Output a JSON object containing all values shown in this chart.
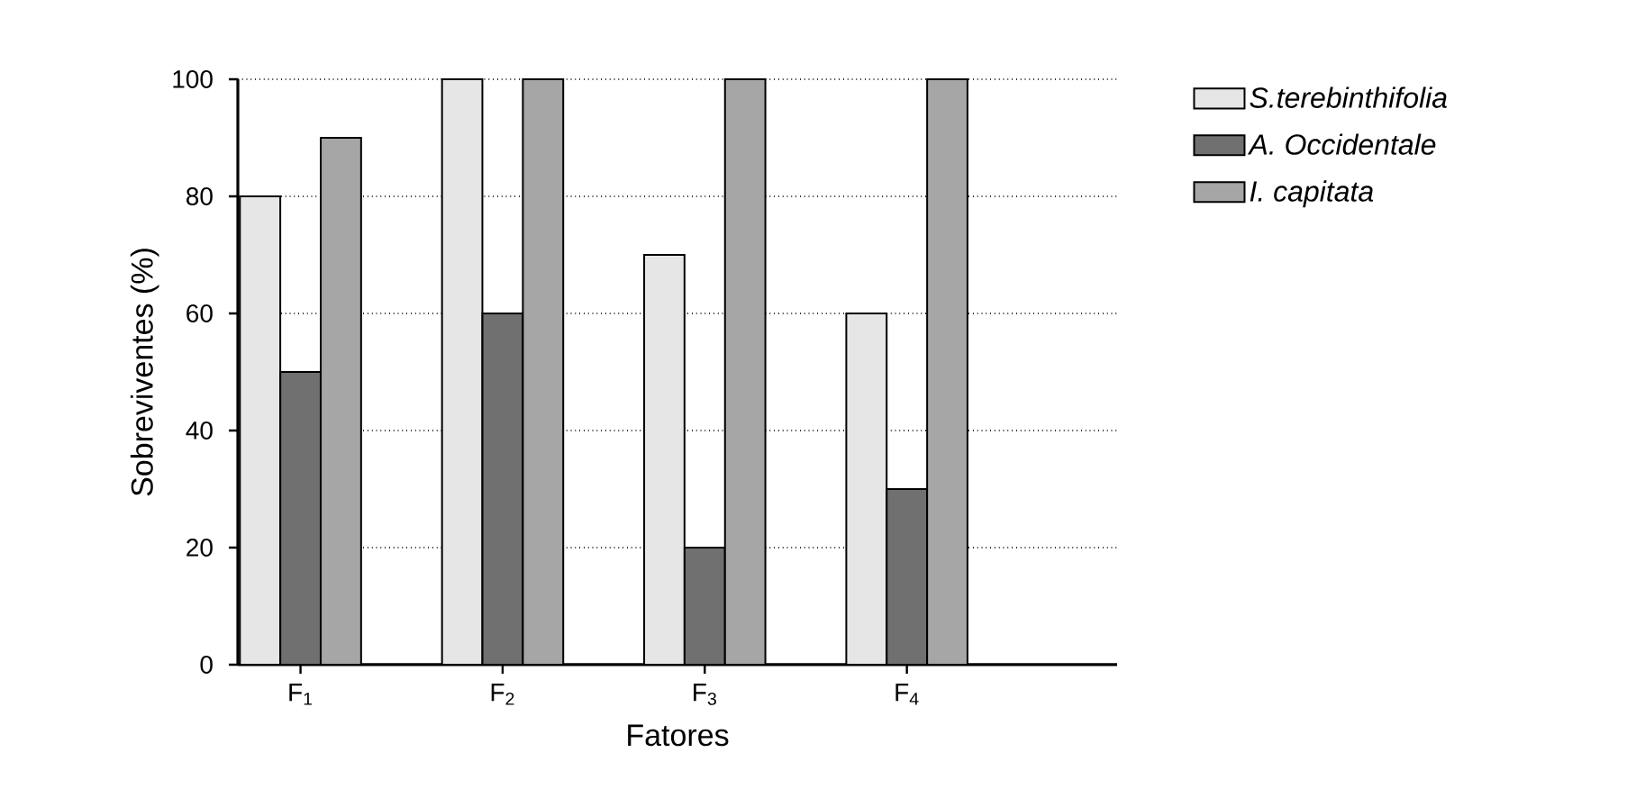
{
  "chart_data": {
    "type": "bar",
    "xlabel": "Fatores",
    "ylabel": "Sobreviventes (%)",
    "categories": [
      "F$_{1}$",
      "F$_{2}$",
      "F$_{3}$",
      "F$_{4}$"
    ],
    "series": [
      {
        "name": "S.terebinthifolia",
        "color": "#e6e6e6",
        "values": [
          80,
          100,
          70,
          60
        ]
      },
      {
        "name": "A. Occidentale",
        "color": "#707070",
        "values": [
          50,
          60,
          20,
          30
        ]
      },
      {
        "name": "I. capitata",
        "color": "#a6a6a6",
        "values": [
          90,
          100,
          100,
          100
        ]
      }
    ],
    "ylim": [
      0,
      100
    ],
    "yticks": [
      0,
      20,
      40,
      60,
      80,
      100
    ],
    "grid": "y",
    "legend": "top right"
  }
}
